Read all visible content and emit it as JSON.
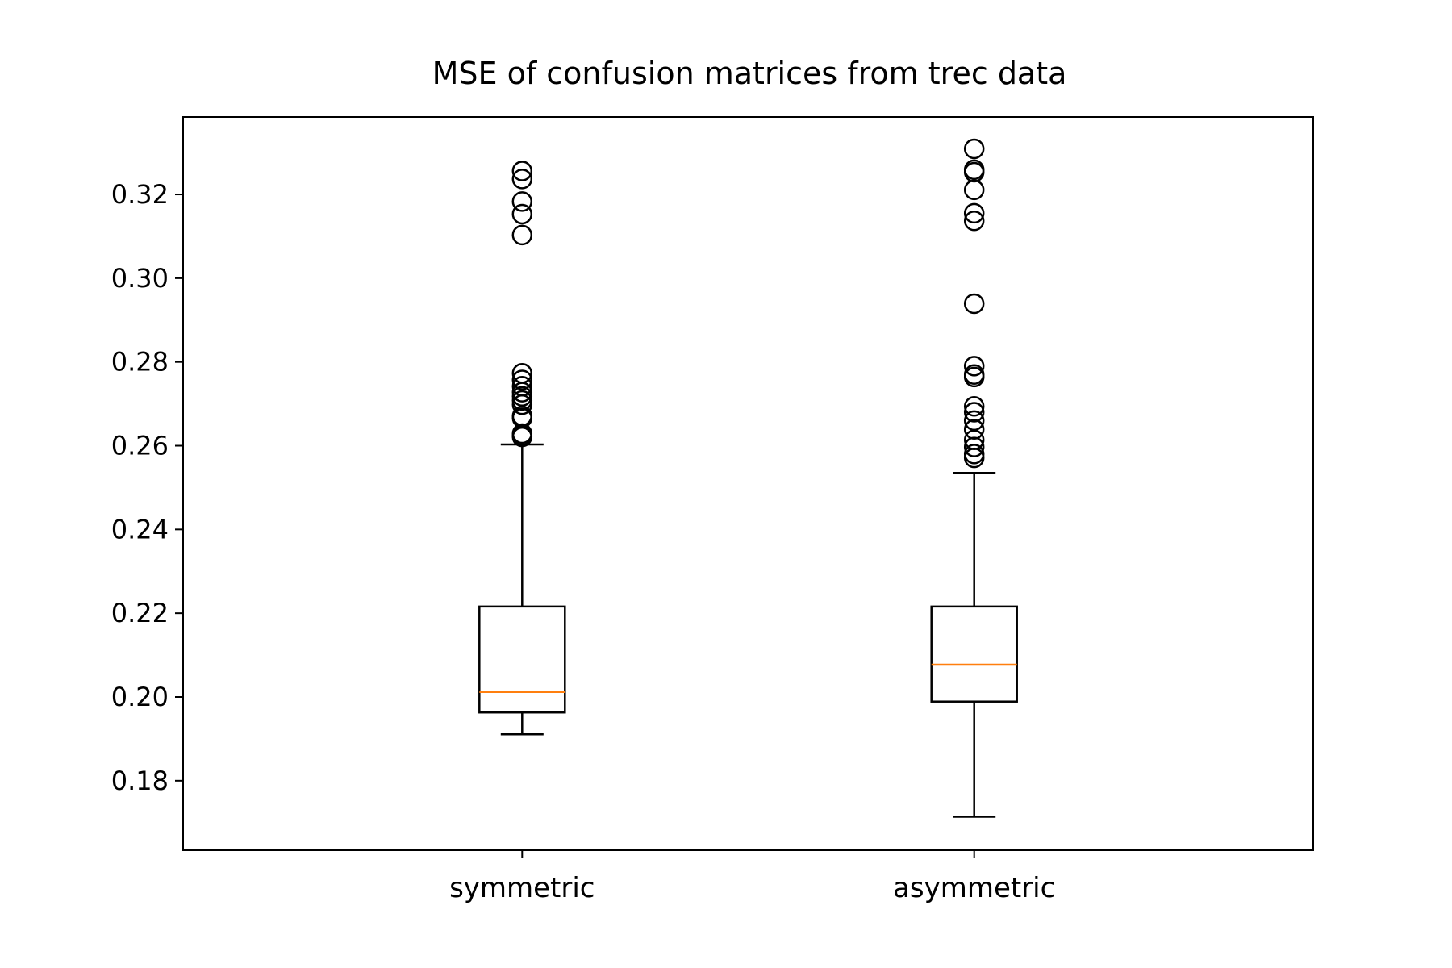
{
  "chart_data": {
    "type": "box",
    "title": "MSE of confusion matrices from trec data",
    "xlabel": "",
    "ylabel": "",
    "categories": [
      "symmetric",
      "asymmetric"
    ],
    "ylim": [
      0.1634,
      0.3385
    ],
    "yticks": [
      0.18,
      0.2,
      0.22,
      0.24,
      0.26,
      0.28,
      0.3,
      0.32
    ],
    "ytick_labels": [
      "0.18",
      "0.20",
      "0.22",
      "0.24",
      "0.26",
      "0.28",
      "0.30",
      "0.32"
    ],
    "grid": false,
    "boxes": [
      {
        "label": "symmetric",
        "whisker_low": 0.1911,
        "q1": 0.1963,
        "median": 0.2012,
        "q3": 0.2216,
        "whisker_high": 0.2603,
        "outliers": [
          0.2621,
          0.2624,
          0.2629,
          0.2666,
          0.2671,
          0.2698,
          0.2708,
          0.2718,
          0.2728,
          0.2742,
          0.2757,
          0.2773,
          0.3103,
          0.3153,
          0.3183,
          0.3237,
          0.3256
        ]
      },
      {
        "label": "asymmetric",
        "whisker_low": 0.1714,
        "q1": 0.1989,
        "median": 0.2077,
        "q3": 0.2216,
        "whisker_high": 0.2535,
        "outliers": [
          0.2571,
          0.258,
          0.2597,
          0.2614,
          0.2639,
          0.266,
          0.268,
          0.2694,
          0.2764,
          0.277,
          0.279,
          0.2939,
          0.3137,
          0.3155,
          0.3211,
          0.3253,
          0.3259,
          0.3309
        ]
      }
    ],
    "colors": {
      "box": "#000000",
      "median": "#ff7f0e",
      "flier": "#000000"
    }
  }
}
